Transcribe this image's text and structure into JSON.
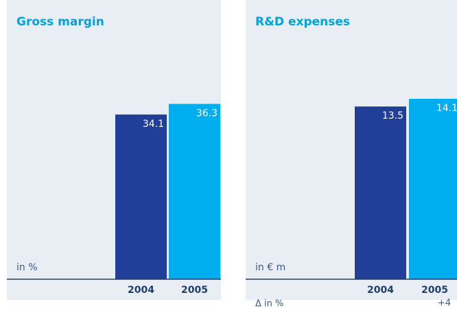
{
  "chart_data": [
    {
      "type": "bar",
      "title": "Gross margin",
      "axis_label": "in %",
      "categories": [
        "2004",
        "2005"
      ],
      "values": [
        34.1,
        36.3
      ],
      "colors": [
        "#213f99",
        "#00aeef"
      ],
      "ylim": [
        0,
        50
      ]
    },
    {
      "type": "bar",
      "title": "R&D expenses",
      "axis_label": "in € m",
      "categories": [
        "2004",
        "2005"
      ],
      "values": [
        13.5,
        14.1
      ],
      "colors": [
        "#213f99",
        "#00aeef"
      ],
      "ylim": [
        0,
        20
      ],
      "delta_label": "Δ in %",
      "delta_labels": [
        null,
        "+4"
      ]
    }
  ]
}
